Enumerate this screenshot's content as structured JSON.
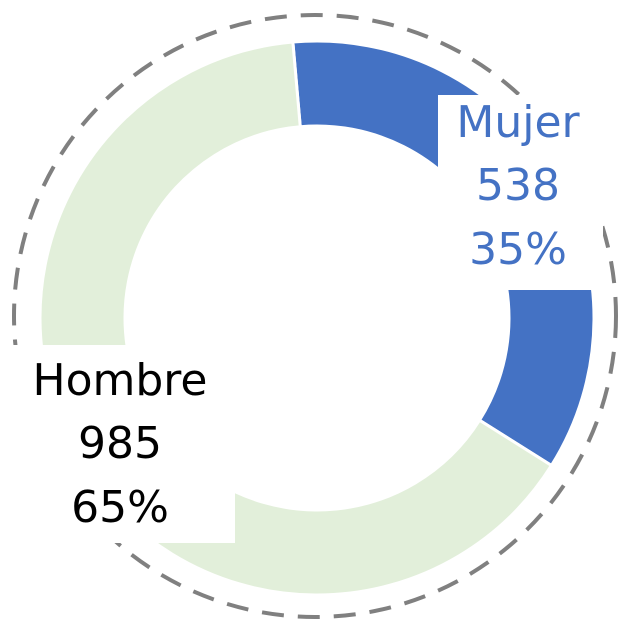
{
  "chart_data": {
    "type": "donut",
    "categories": [
      "Mujer",
      "Hombre"
    ],
    "values": [
      538,
      985
    ],
    "percentages": [
      35,
      65
    ],
    "percentage_labels": [
      "35%",
      "65%"
    ],
    "colors": [
      "#4472c4",
      "#e2efda"
    ],
    "label_colors": [
      "#4472c4",
      "#000000"
    ]
  }
}
